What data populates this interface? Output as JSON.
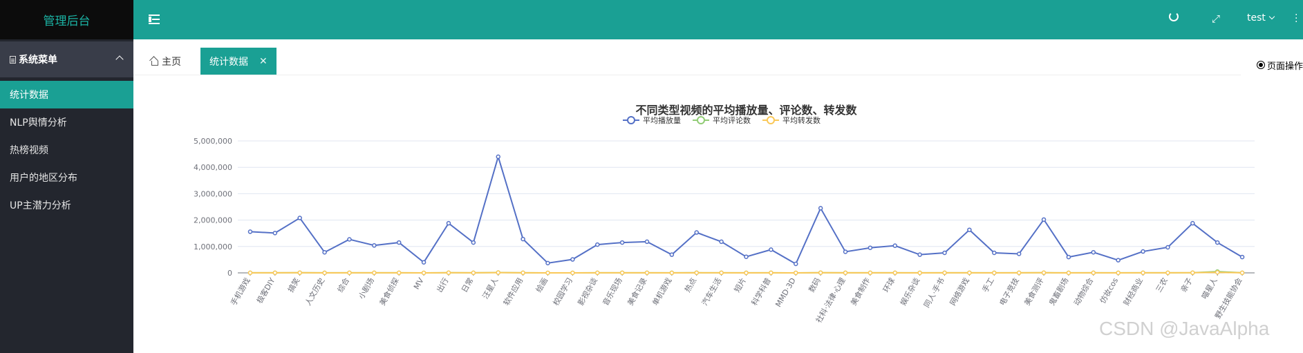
{
  "sidebar": {
    "logo": "管理后台",
    "group_label": "系统菜单",
    "items": [
      {
        "label": "统计数据",
        "active": true
      },
      {
        "label": "NLP舆情分析",
        "active": false
      },
      {
        "label": "热榜视频",
        "active": false
      },
      {
        "label": "用户的地区分布",
        "active": false
      },
      {
        "label": "UP主潜力分析",
        "active": false
      }
    ]
  },
  "header": {
    "user": "test",
    "icons": [
      "menu-fold-icon",
      "refresh-icon",
      "fullscreen-icon",
      "more-icon"
    ]
  },
  "tabs": {
    "home_label": "主页",
    "active_label": "统计数据",
    "page_ops": "页面操作"
  },
  "watermark": "CSDN @JavaAlpha",
  "chart_data": {
    "type": "line",
    "title": "不同类型视频的平均播放量、评论数、转发数",
    "categories": [
      "手机游戏",
      "极客DIY",
      "搞笑",
      "人文历史",
      "综合",
      "小剧场",
      "美食侦探",
      "MV",
      "出行",
      "日常",
      "汪星人",
      "软件应用",
      "绘画",
      "校园学习",
      "影视杂谈",
      "音乐现场",
      "美食记录",
      "单机游戏",
      "热点",
      "汽车生活",
      "短片",
      "科学科普",
      "MMD·3D",
      "数码",
      "社科·法律·心理",
      "美食制作",
      "环球",
      "娱乐杂谈",
      "同人·手书",
      "网络游戏",
      "手工",
      "电子竞技",
      "美食测评",
      "鬼畜剧场",
      "动物综合",
      "仿妆cos",
      "财经商业",
      "三农",
      "亲子",
      "喵星人",
      "野生技能协会"
    ],
    "series": [
      {
        "name": "平均播放量",
        "color": "#5470c6",
        "values": [
          1560000,
          1510000,
          2080000,
          780000,
          1270000,
          1040000,
          1150000,
          400000,
          1880000,
          1150000,
          4400000,
          1280000,
          370000,
          510000,
          1070000,
          1150000,
          1180000,
          690000,
          1530000,
          1180000,
          610000,
          880000,
          340000,
          2450000,
          800000,
          950000,
          1030000,
          690000,
          760000,
          1630000,
          760000,
          720000,
          2020000,
          600000,
          780000,
          480000,
          810000,
          970000,
          1880000,
          1150000,
          600000
        ]
      },
      {
        "name": "平均评论数",
        "color": "#91cc75",
        "values": [
          3000,
          4000,
          6000,
          2000,
          4000,
          3000,
          3000,
          1000,
          6000,
          3000,
          12000,
          3000,
          1000,
          1000,
          3000,
          4000,
          4000,
          2000,
          5000,
          3000,
          2000,
          3000,
          1000,
          8000,
          4000,
          3000,
          3000,
          2000,
          3000,
          4000,
          2000,
          3000,
          6000,
          2000,
          3000,
          2000,
          3000,
          3000,
          6000,
          50000,
          3000
        ]
      },
      {
        "name": "平均转发数",
        "color": "#fac858",
        "values": [
          2000,
          3000,
          5000,
          1000,
          3000,
          2000,
          2000,
          1000,
          5000,
          2000,
          9000,
          2000,
          1000,
          1000,
          2000,
          3000,
          3000,
          1000,
          4000,
          2000,
          1000,
          2000,
          1000,
          6000,
          3000,
          2000,
          2000,
          1000,
          2000,
          3000,
          1000,
          2000,
          5000,
          1000,
          2000,
          1000,
          2000,
          2000,
          5000,
          20000,
          2000
        ]
      }
    ],
    "ylim": [
      0,
      5000000
    ],
    "yticks": [
      "0",
      "1,000,000",
      "2,000,000",
      "3,000,000",
      "4,000,000",
      "5,000,000"
    ],
    "legend_placement": "top-center",
    "grid": true
  }
}
